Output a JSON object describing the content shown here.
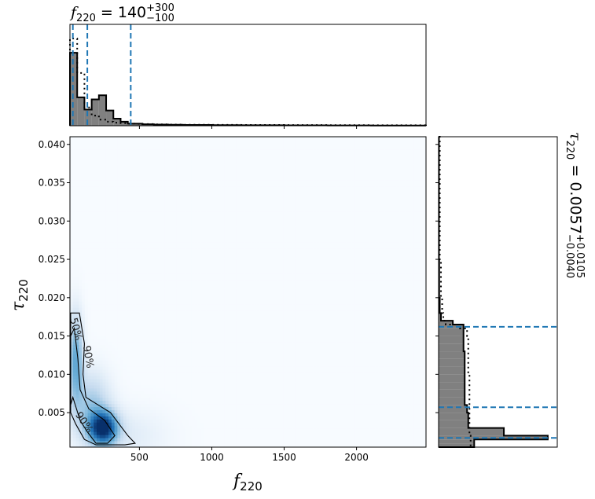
{
  "chart_data": [
    {
      "type": "heatmap",
      "xlabel": "f",
      "xlabel_sub": "220",
      "ylabel": "τ",
      "ylabel_sub": "220",
      "xlim": [
        20,
        2480
      ],
      "ylim": [
        0.0005,
        0.041
      ],
      "xticks": [
        500,
        1000,
        1500,
        2000
      ],
      "xtick_labels": [
        "500",
        "1000",
        "1500",
        "2000"
      ],
      "yticks": [
        0.005,
        0.01,
        0.015,
        0.02,
        0.025,
        0.03,
        0.035,
        0.04
      ],
      "ytick_labels": [
        "0.005",
        "0.010",
        "0.015",
        "0.020",
        "0.025",
        "0.030",
        "0.035",
        "0.040"
      ],
      "colormap": [
        "#f7fbff",
        "#c6dbef",
        "#6baed6",
        "#2171b5",
        "#08306b"
      ],
      "density_peaks": [
        {
          "x": 250,
          "y": 0.003,
          "sx": 70,
          "sy": 0.0015,
          "amp": 1.0
        },
        {
          "x": 60,
          "y": 0.012,
          "sx": 35,
          "sy": 0.004,
          "amp": 0.55
        },
        {
          "x": 170,
          "y": 0.006,
          "sx": 90,
          "sy": 0.003,
          "amp": 0.35
        },
        {
          "x": 400,
          "y": 0.002,
          "sx": 200,
          "sy": 0.0025,
          "amp": 0.12
        }
      ],
      "contours": [
        {
          "label": "50%",
          "points": [
            [
              25,
              0.015
            ],
            [
              50,
              0.016
            ],
            [
              75,
              0.012
            ],
            [
              90,
              0.008
            ],
            [
              150,
              0.0055
            ],
            [
              260,
              0.004
            ],
            [
              330,
              0.002
            ],
            [
              280,
              0.001
            ],
            [
              200,
              0.001
            ],
            [
              140,
              0.0025
            ],
            [
              90,
              0.004
            ],
            [
              40,
              0.007
            ],
            [
              25,
              0.006
            ]
          ],
          "label_at": [
            40,
            0.0158
          ],
          "label_rot": 75
        },
        {
          "label": "90%",
          "points": [
            [
              25,
              0.018
            ],
            [
              85,
              0.018
            ],
            [
              120,
              0.014
            ],
            [
              110,
              0.01
            ],
            [
              130,
              0.007
            ],
            [
              300,
              0.005
            ],
            [
              420,
              0.002
            ],
            [
              470,
              0.001
            ],
            [
              400,
              0.0008
            ],
            [
              200,
              0.0008
            ],
            [
              120,
              0.0015
            ],
            [
              60,
              0.0035
            ],
            [
              25,
              0.005
            ]
          ],
          "label_at": [
            125,
            0.0122
          ],
          "label_rot": 80,
          "label2_at": [
            100,
            0.0035
          ],
          "label2_rot": 55
        }
      ]
    },
    {
      "type": "bar",
      "subtype": "step-histogram",
      "title_var": "f",
      "title_sub": "220",
      "title_value": "140",
      "title_plus": "+300",
      "title_minus": "−100",
      "xlim": [
        20,
        2480
      ],
      "bin_edges": [
        20,
        70,
        120,
        170,
        220,
        270,
        320,
        370,
        420,
        470,
        520,
        600,
        700,
        800,
        1000,
        1200,
        1500,
        1800,
        2100,
        2480
      ],
      "values": [
        0.72,
        0.28,
        0.16,
        0.26,
        0.3,
        0.15,
        0.07,
        0.04,
        0.02,
        0.02,
        0.015,
        0.012,
        0.01,
        0.008,
        0.006,
        0.005,
        0.004,
        0.003,
        0.002
      ],
      "prior_values": [
        0.86,
        0.52,
        0.18,
        0.1,
        0.06,
        0.04,
        0.03,
        0.025,
        0.02,
        0.018,
        0.016,
        0.014,
        0.012,
        0.01,
        0.009,
        0.008,
        0.007,
        0.006,
        0.005
      ],
      "ylim": [
        0,
        1.0
      ],
      "quantile_lines": [
        40,
        140,
        440
      ]
    },
    {
      "type": "bar",
      "subtype": "step-histogram-horizontal",
      "title_var": "τ",
      "title_sub": "220",
      "title_value": "0.0057",
      "title_plus": "+0.0105",
      "title_minus": "−0.0040",
      "ylim": [
        0.0005,
        0.041
      ],
      "bin_edges": [
        0.0005,
        0.001,
        0.0015,
        0.002,
        0.003,
        0.004,
        0.005,
        0.006,
        0.007,
        0.008,
        0.009,
        0.01,
        0.011,
        0.012,
        0.013,
        0.014,
        0.015,
        0.016,
        0.0165,
        0.017,
        0.018,
        0.02,
        0.025,
        0.041
      ],
      "values": [
        0.3,
        0.3,
        0.92,
        0.55,
        0.25,
        0.25,
        0.24,
        0.22,
        0.22,
        0.22,
        0.22,
        0.22,
        0.22,
        0.22,
        0.21,
        0.21,
        0.21,
        0.21,
        0.12,
        0.02,
        0.01,
        0.005,
        0.003
      ],
      "prior_values": [
        0.27,
        0.27,
        0.27,
        0.26,
        0.26,
        0.26,
        0.26,
        0.26,
        0.26,
        0.26,
        0.26,
        0.25,
        0.25,
        0.25,
        0.25,
        0.25,
        0.24,
        0.18,
        0.06,
        0.04,
        0.03,
        0.02,
        0.01
      ],
      "xlim": [
        0,
        1.0
      ],
      "quantile_lines": [
        0.0017,
        0.0057,
        0.0162
      ]
    }
  ]
}
